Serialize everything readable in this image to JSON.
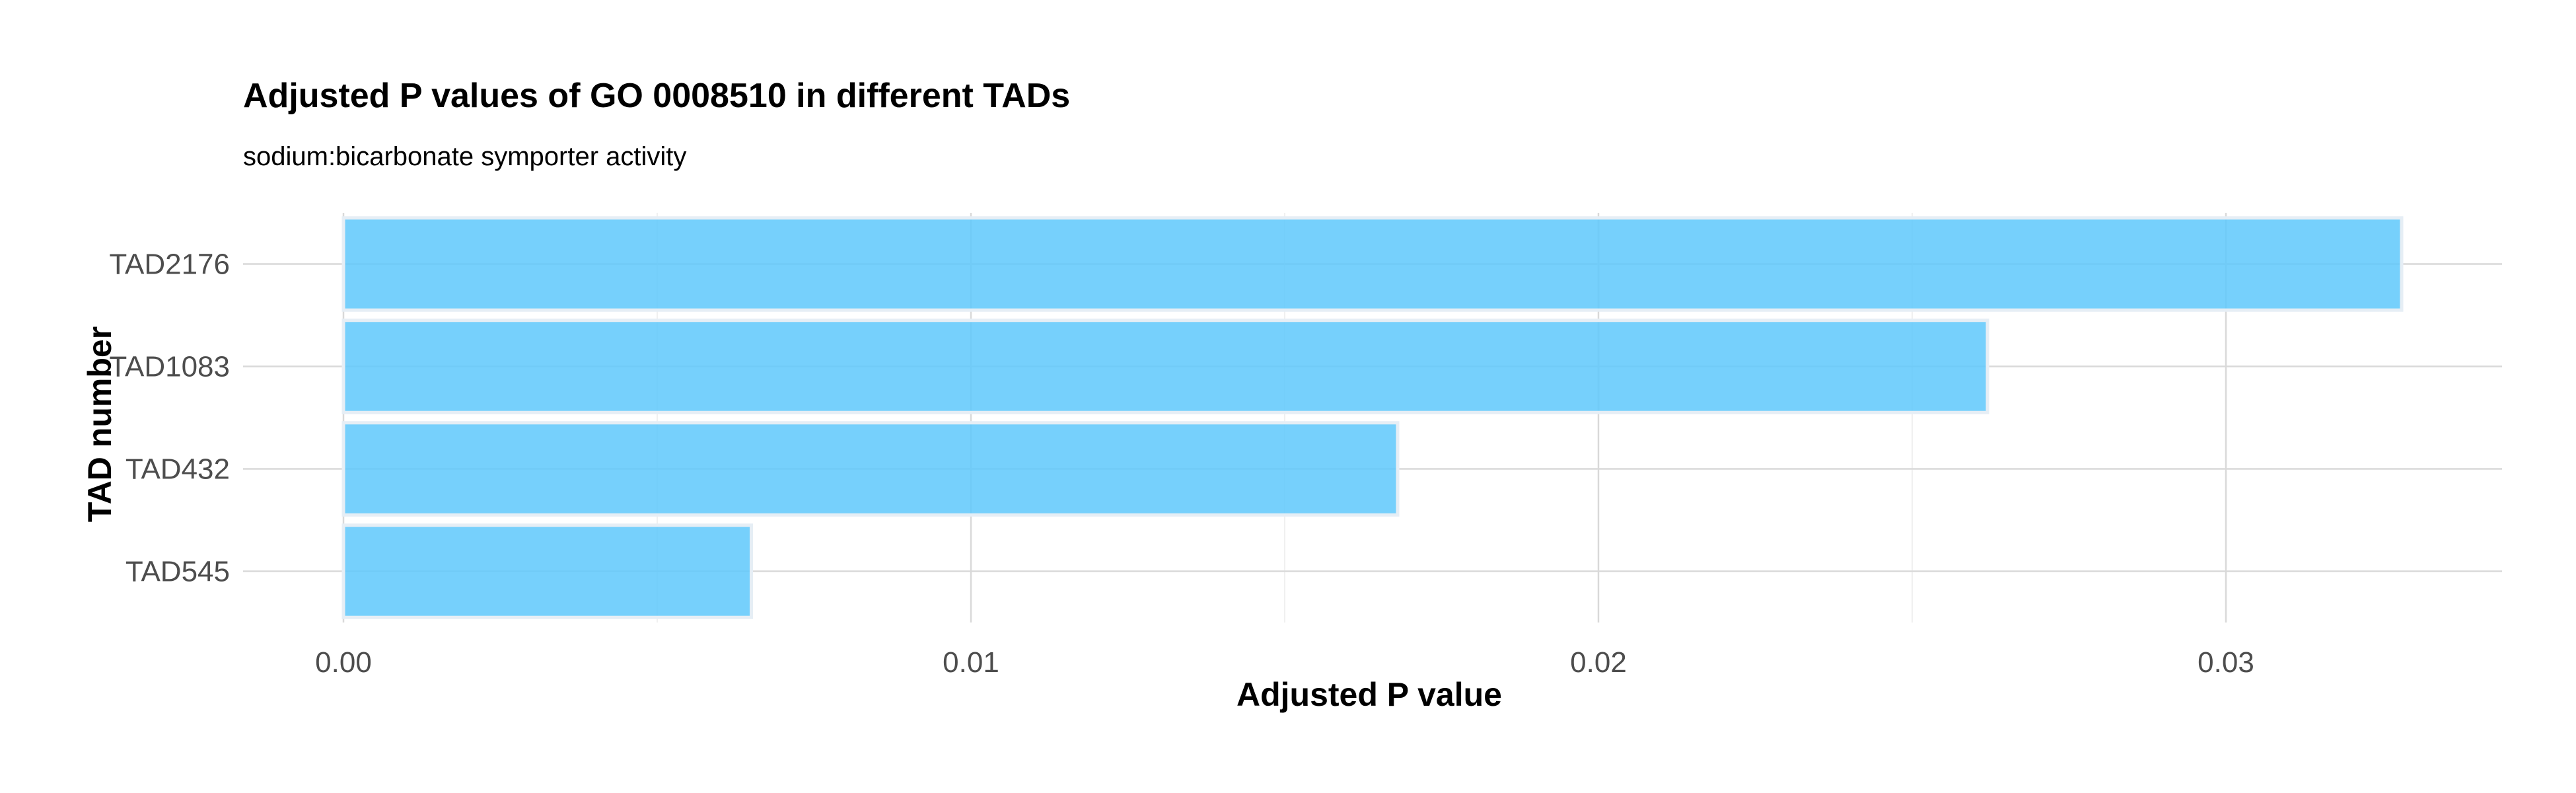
{
  "chart_data": {
    "type": "bar",
    "orientation": "horizontal",
    "title": "Adjusted P values of GO 0008510 in different TADs",
    "subtitle": "sodium:bicarbonate symporter activity",
    "xlabel": "Adjusted P value",
    "ylabel": "TAD number",
    "categories": [
      "TAD2176",
      "TAD1083",
      "TAD432",
      "TAD545"
    ],
    "values": [
      0.0328,
      0.0262,
      0.0168,
      0.0065
    ],
    "xlim": [
      -0.0016,
      0.0344
    ],
    "x_ticks": [
      0.0,
      0.01,
      0.02,
      0.03
    ],
    "x_tick_labels": [
      "0.00",
      "0.01",
      "0.02",
      "0.03"
    ],
    "x_minor_ticks": [
      0.005,
      0.015,
      0.025
    ],
    "grid": true,
    "bar_color": "#5ec8fc"
  }
}
